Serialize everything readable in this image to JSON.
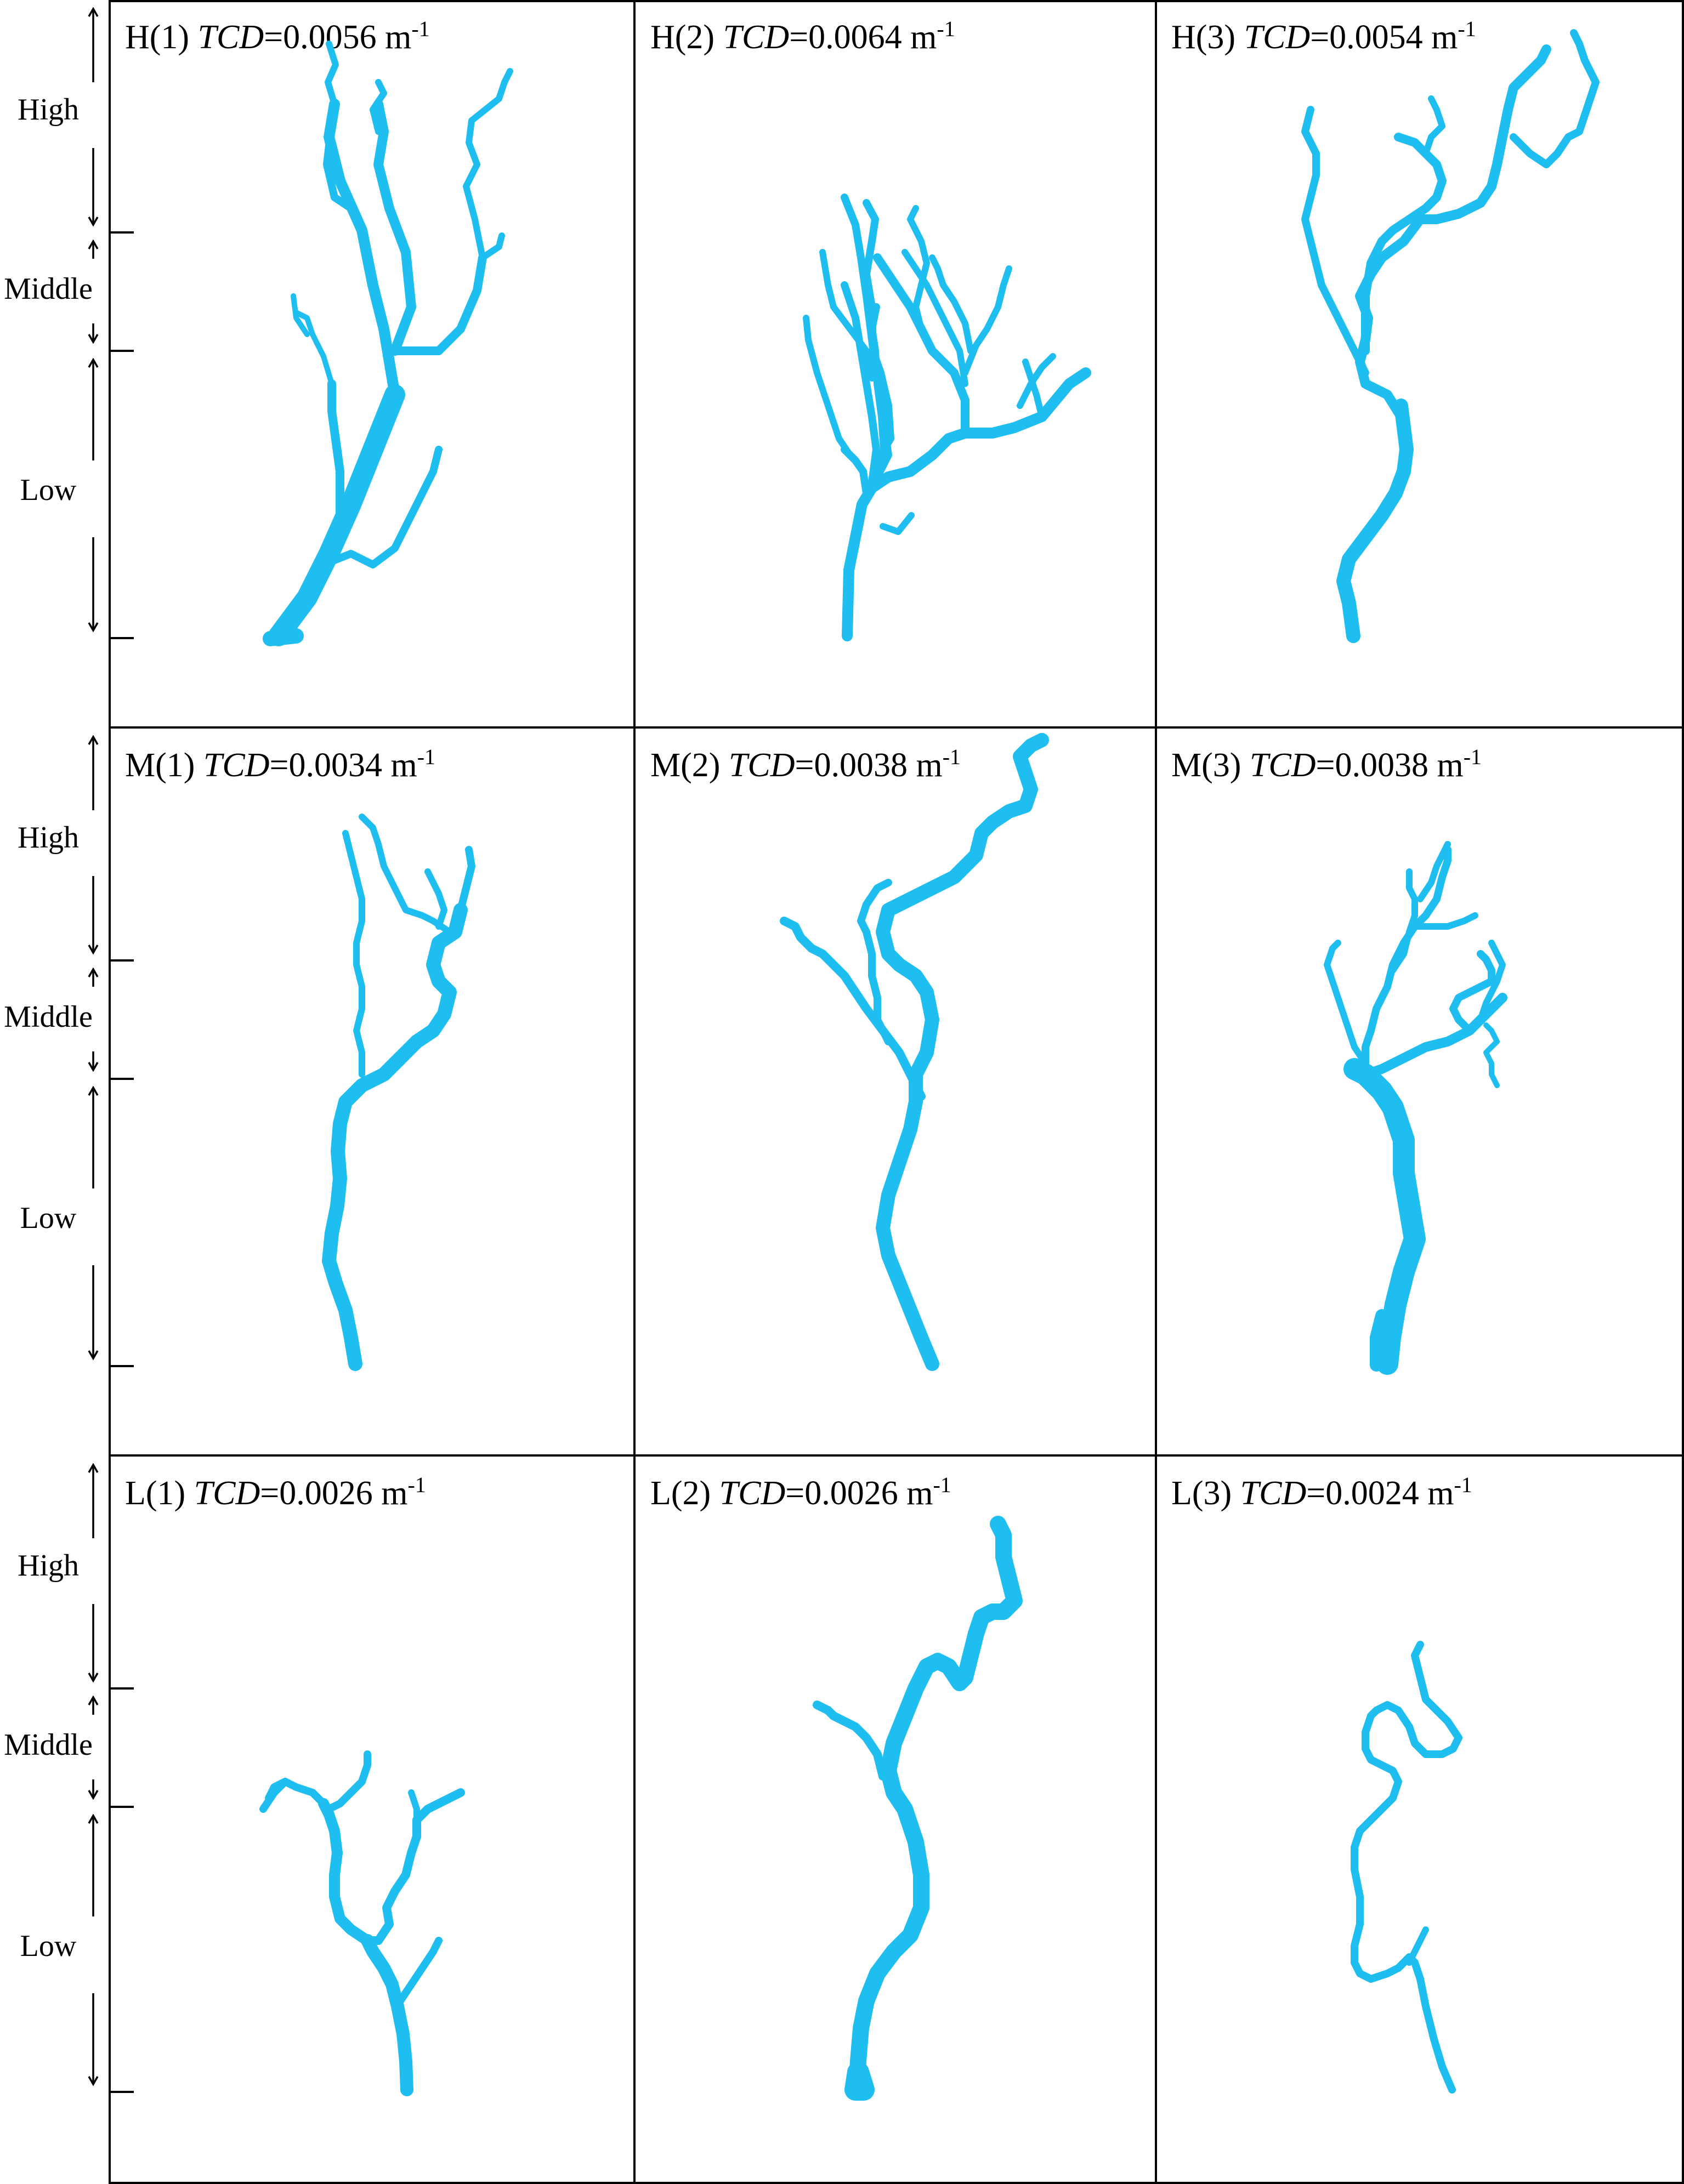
{
  "zones": {
    "high": "High",
    "middle": "Middle",
    "low": "Low"
  },
  "panels": [
    {
      "id": "H(1)",
      "metric": "TCD",
      "value": "=0.0056 m",
      "exp": "-1"
    },
    {
      "id": "H(2)",
      "metric": "TCD",
      "value": "=0.0064 m",
      "exp": "-1"
    },
    {
      "id": "H(3)",
      "metric": "TCD",
      "value": "=0.0054 m",
      "exp": "-1"
    },
    {
      "id": "M(1)",
      "metric": "TCD",
      "value": "=0.0034 m",
      "exp": "-1"
    },
    {
      "id": "M(2)",
      "metric": "TCD",
      "value": "=0.0038 m",
      "exp": "-1"
    },
    {
      "id": "M(3)",
      "metric": "TCD",
      "value": "=0.0038 m",
      "exp": "-1"
    },
    {
      "id": "L(1)",
      "metric": "TCD",
      "value": "=0.0026 m",
      "exp": "-1"
    },
    {
      "id": "L(2)",
      "metric": "TCD",
      "value": "=0.0026 m",
      "exp": "-1"
    },
    {
      "id": "L(3)",
      "metric": "TCD",
      "value": "=0.0024 m",
      "exp": "-1"
    }
  ],
  "colors": {
    "river": "#1fbef0",
    "frame": "#000000"
  }
}
